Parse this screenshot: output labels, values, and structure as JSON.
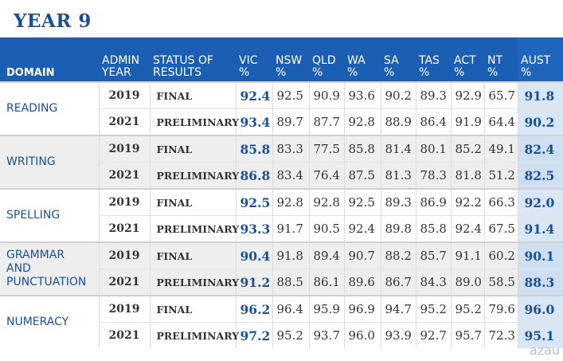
{
  "title": "YEAR 9",
  "headers": {
    "domain": "DOMAIN",
    "admin_year": [
      "ADMIN",
      "YEAR"
    ],
    "status": [
      "STATUS OF",
      "RESULTS"
    ],
    "states": [
      [
        "VIC",
        "%"
      ],
      [
        "NSW",
        "%"
      ],
      [
        "QLD",
        "%"
      ],
      [
        "WA",
        "%"
      ],
      [
        "SA",
        "%"
      ],
      [
        "TAS",
        "%"
      ],
      [
        "ACT",
        "%"
      ],
      [
        "NT",
        "%"
      ],
      [
        "AUST",
        "%"
      ]
    ]
  },
  "rows": [
    {
      "domain": [
        "READING"
      ],
      "year": "2019",
      "status": "FINAL",
      "values": [
        "92.4",
        "92.5",
        "90.9",
        "93.6",
        "90.2",
        "89.3",
        "92.9",
        "65.7",
        "91.8"
      ]
    },
    {
      "domain": [],
      "year": "2021",
      "status": "PRELIMINARY",
      "values": [
        "93.4",
        "89.7",
        "87.7",
        "92.8",
        "88.9",
        "86.4",
        "91.9",
        "64.4",
        "90.2"
      ]
    },
    {
      "domain": [
        "WRITING"
      ],
      "year": "2019",
      "status": "FINAL",
      "values": [
        "85.8",
        "83.3",
        "77.5",
        "85.8",
        "81.4",
        "80.1",
        "85.2",
        "49.1",
        "82.4"
      ]
    },
    {
      "domain": [],
      "year": "2021",
      "status": "PRELIMINARY",
      "values": [
        "86.8",
        "83.4",
        "76.4",
        "87.5",
        "81.3",
        "78.3",
        "81.8",
        "51.2",
        "82.5"
      ]
    },
    {
      "domain": [
        "SPELLING"
      ],
      "year": "2019",
      "status": "FINAL",
      "values": [
        "92.5",
        "92.8",
        "92.8",
        "92.5",
        "89.3",
        "86.9",
        "92.2",
        "66.3",
        "92.0"
      ]
    },
    {
      "domain": [],
      "year": "2021",
      "status": "PRELIMINARY",
      "values": [
        "93.3",
        "91.7",
        "90.5",
        "92.4",
        "89.8",
        "85.8",
        "92.4",
        "67.5",
        "91.4"
      ]
    },
    {
      "domain": [
        "GRAMMAR",
        "AND",
        "PUNCTUATION"
      ],
      "year": "2019",
      "status": "FINAL",
      "values": [
        "90.4",
        "91.8",
        "89.4",
        "90.7",
        "88.2",
        "85.7",
        "91.1",
        "60.2",
        "90.1"
      ]
    },
    {
      "domain": [],
      "year": "2021",
      "status": "PRELIMINARY",
      "values": [
        "91.2",
        "88.5",
        "86.1",
        "89.6",
        "86.7",
        "84.3",
        "89.0",
        "58.5",
        "88.3"
      ]
    },
    {
      "domain": [
        "NUMERACY"
      ],
      "year": "2019",
      "status": "FINAL",
      "values": [
        "96.2",
        "96.4",
        "95.9",
        "96.9",
        "94.7",
        "95.2",
        "95.2",
        "79.6",
        "96.0"
      ]
    },
    {
      "domain": [],
      "year": "2021",
      "status": "PRELIMINARY",
      "values": [
        "97.2",
        "95.2",
        "93.7",
        "96.0",
        "93.9",
        "92.7",
        "95.7",
        "72.3",
        "95.1"
      ]
    }
  ],
  "watermark": "azau"
}
